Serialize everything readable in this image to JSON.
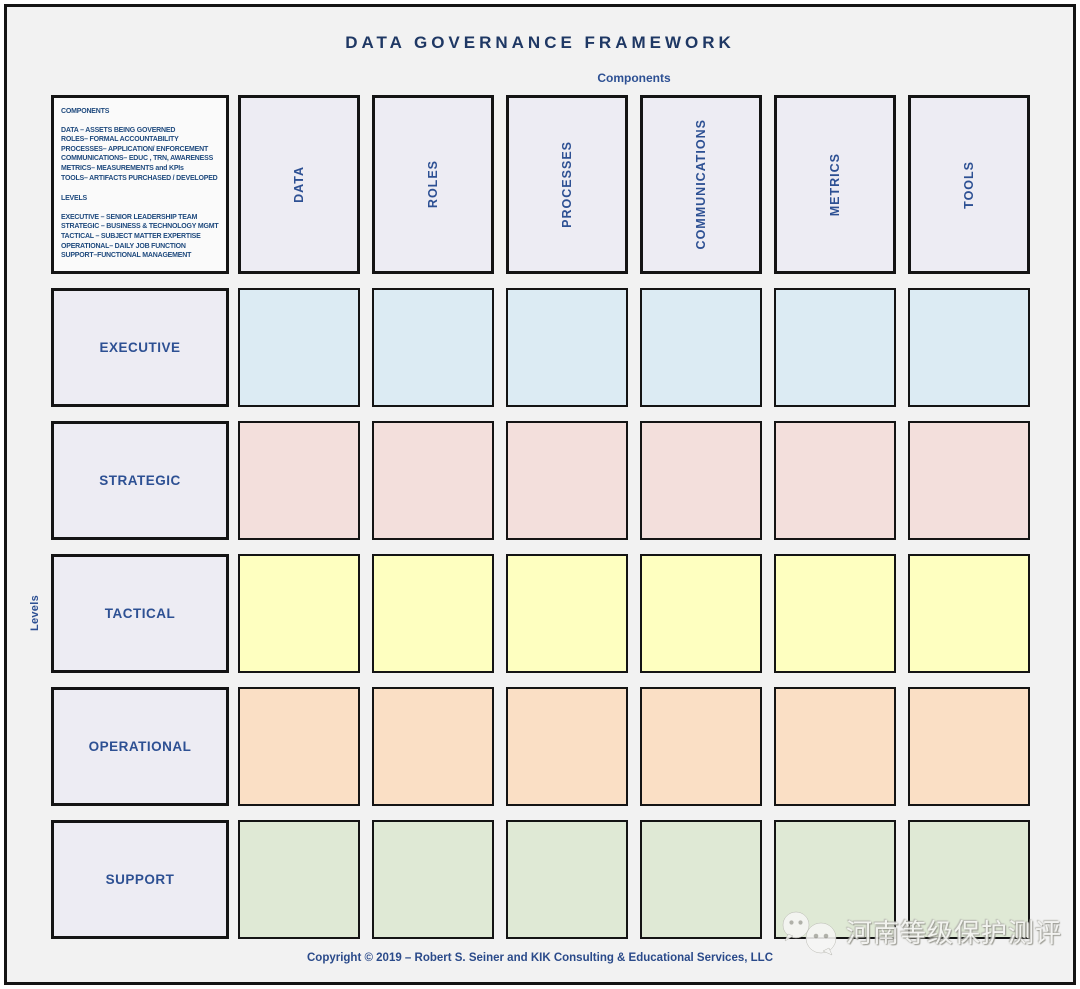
{
  "title": "DATA GOVERNANCE FRAMEWORK",
  "axes": {
    "columns_label": "Components",
    "rows_label": "Levels"
  },
  "legend": {
    "components_heading": "COMPONENTS",
    "component_definitions": [
      "DATA – ASSETS BEING GOVERNED",
      "ROLES– FORMAL ACCOUNTABILITY",
      "PROCESSES– APPLICATION/ ENFORCEMENT",
      "COMMUNICATIONS– EDUC , TRN, AWARENESS",
      "METRICS– MEASUREMENTS and KPIs",
      "TOOLS– ARTIFACTS PURCHASED / DEVELOPED"
    ],
    "levels_heading": "LEVELS",
    "level_definitions": [
      "EXECUTIVE – SENIOR LEADERSHIP TEAM",
      "STRATEGIC – BUSINESS & TECHNOLOGY MGMT",
      "TACTICAL – SUBJECT MATTER EXPERTISE",
      "OPERATIONAL– DAILY JOB FUNCTION",
      "SUPPORT–FUNCTIONAL MANAGEMENT"
    ]
  },
  "matrix": {
    "columns": [
      "DATA",
      "ROLES",
      "PROCESSES",
      "COMMUNICATIONS",
      "METRICS",
      "TOOLS"
    ],
    "rows": [
      {
        "label": "EXECUTIVE",
        "cell_color": "#dcebf3"
      },
      {
        "label": "STRATEGIC",
        "cell_color": "#f3dfdc"
      },
      {
        "label": "TACTICAL",
        "cell_color": "#feffc0"
      },
      {
        "label": "OPERATIONAL",
        "cell_color": "#fadfc5"
      },
      {
        "label": "SUPPORT",
        "cell_color": "#dfe9d5"
      }
    ]
  },
  "footer": {
    "copyright": "Copyright © 2019 – Robert S. Seiner and KIK Consulting & Educational Services, LLC"
  },
  "watermark": {
    "icon": "wechat-icon",
    "text": "河南等级保护测评"
  },
  "colors": {
    "page_bg": "#f2f2f2",
    "border_black": "#141414",
    "header_fill": "#edecf3",
    "legend_fill": "#fafafa",
    "title_blue": "#1f3864",
    "text_blue": "#2d5093"
  }
}
